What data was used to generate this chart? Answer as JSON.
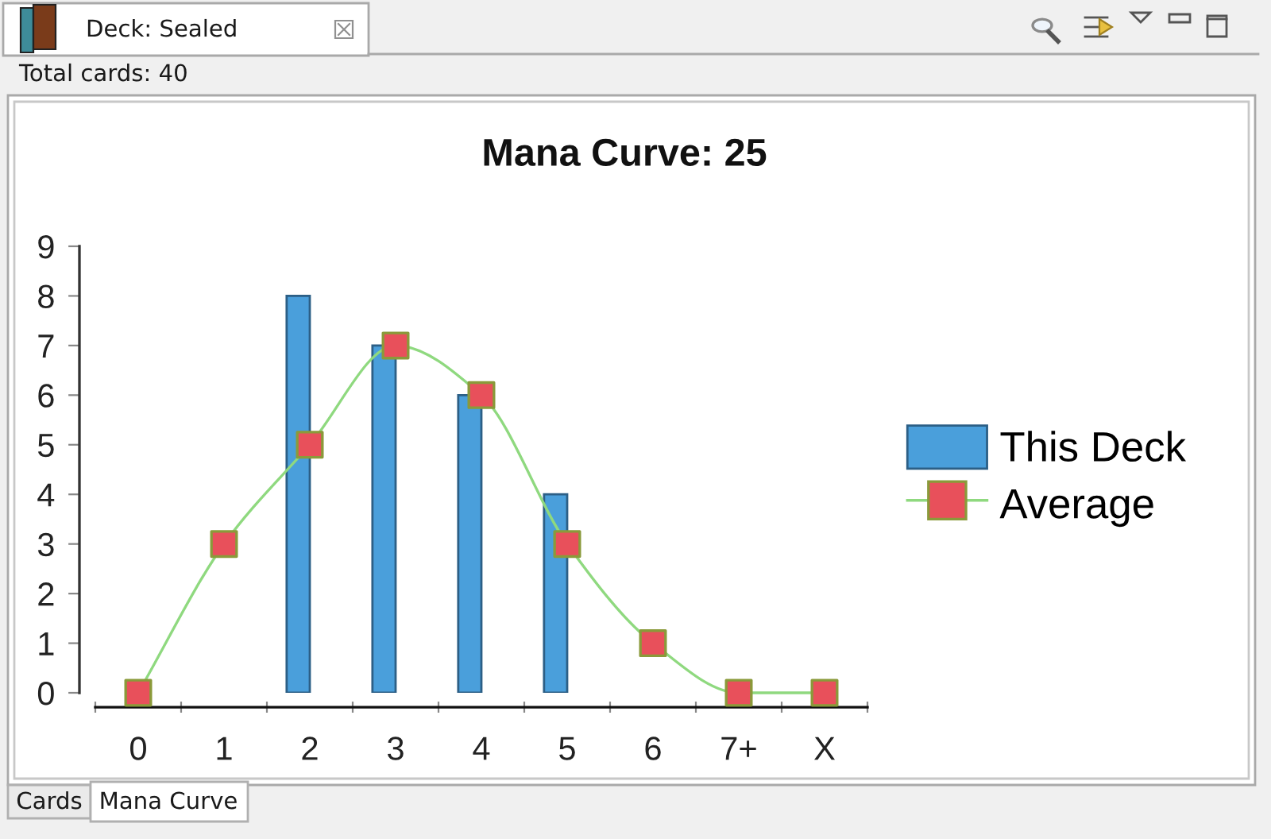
{
  "chart_data": {
    "type": "bar",
    "title": "Mana Curve: 25",
    "categories": [
      "0",
      "1",
      "2",
      "3",
      "4",
      "5",
      "6",
      "7+",
      "X"
    ],
    "series": [
      {
        "name": "This Deck",
        "color": "#4a9fdb",
        "values": [
          null,
          null,
          8,
          7,
          6,
          4,
          null,
          null,
          null
        ]
      },
      {
        "name": "Average",
        "type": "line",
        "color": "#8fd97f",
        "colors": [
          "#e8505b",
          "#e8505b",
          "#e8505b",
          "#e8505b",
          "#e8505b",
          "#e8505b",
          "#e8505b",
          "#e8505b",
          "#e8505b"
        ],
        "values": [
          0,
          3,
          5,
          7,
          6,
          3,
          1,
          0,
          0
        ]
      }
    ],
    "marker": "square",
    "line_style": "solid",
    "ylim": [
      0,
      9
    ],
    "yticks": [
      0,
      1,
      2,
      3,
      4,
      5,
      6,
      7,
      8,
      9
    ],
    "legend": "right",
    "annotations": [
      "Deck: Sealed",
      "Total cards: 40",
      "Cards",
      "Mana Curve"
    ]
  }
}
